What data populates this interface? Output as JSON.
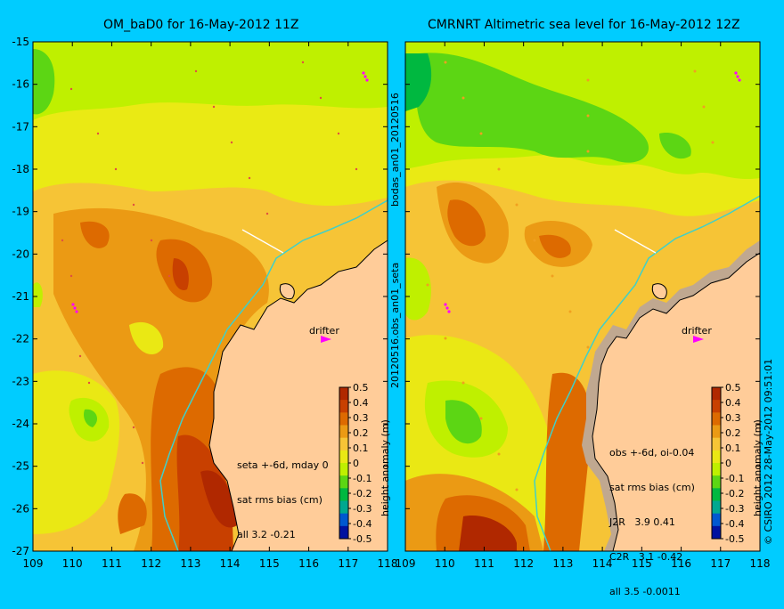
{
  "panels": [
    {
      "title": "OM_baD0 for 16-May-2012 11Z",
      "notes": [
        "seta +-6d, mday 0",
        "sat rms bias (cm)",
        "all 3.2 -0.21"
      ],
      "drifter_label": "drifter"
    },
    {
      "title": "CMRNRT Altimetric sea level  for 16-May-2012 12Z",
      "notes": [
        "obs +-6d, oi-0.04",
        "sat rms bias (cm)",
        "J2R   3.9 0.41",
        "C2R   3.1 -0.42",
        "all 3.5 -0.0011"
      ],
      "drifter_label": "drifter"
    }
  ],
  "axes": {
    "x_ticks": [
      "109",
      "110",
      "111",
      "112",
      "113",
      "114",
      "115",
      "116",
      "117",
      "118"
    ],
    "y_ticks": [
      "-15",
      "-16",
      "-17",
      "-18",
      "-19",
      "-20",
      "-21",
      "-22",
      "-23",
      "-24",
      "-25",
      "-26",
      "-27"
    ]
  },
  "colorbar": {
    "label": "height anomaly (m)",
    "ticks": [
      "0.5",
      "0.4",
      "0.3",
      "0.2",
      "0.1",
      "0",
      "-0.1",
      "-0.2",
      "-0.3",
      "-0.4",
      "-0.5"
    ],
    "colors": [
      "#b02800",
      "#c84000",
      "#dd6a00",
      "#eb9a14",
      "#f6c436",
      "#eae814",
      "#bff000",
      "#5cd614",
      "#00b840",
      "#00a890",
      "#0058d0",
      "#0012a0"
    ]
  },
  "side_text": {
    "middle_top": "bodas_an01_20120516",
    "middle_bottom": "20120516.obs_an01_seta",
    "right": "© CSIRO 2012   28-May-2012 09:51:01"
  },
  "colors": {
    "land": "#ffcc99",
    "background": "#00ccff",
    "isobath": "#40d0c8"
  }
}
